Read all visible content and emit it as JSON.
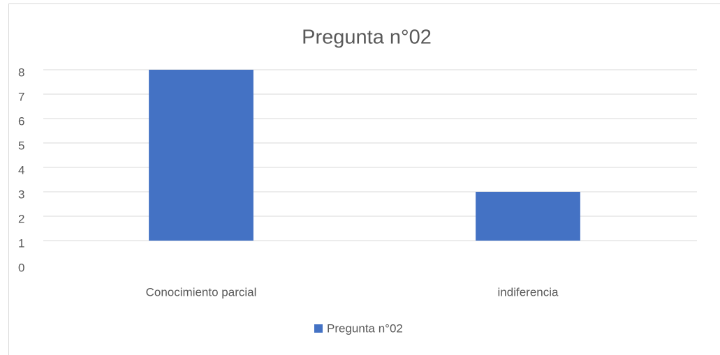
{
  "chart_data": {
    "type": "bar",
    "title": "Pregunta n°02",
    "categories": [
      "Conocimiento parcial",
      "indiferencia"
    ],
    "series": [
      {
        "name": "Pregunta n°02",
        "color": "#4472c4",
        "values": [
          8,
          3
        ]
      }
    ],
    "ylim": [
      1,
      8
    ],
    "yticks": [
      0,
      1,
      2,
      3,
      4,
      5,
      6,
      7,
      8
    ],
    "grid": true,
    "legend": "bottom"
  }
}
